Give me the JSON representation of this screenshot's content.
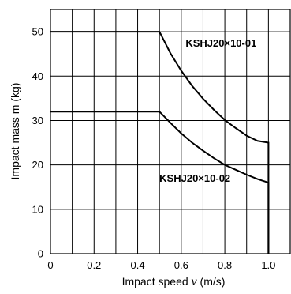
{
  "chart_data": {
    "type": "line",
    "xlabel_prefix": "Impact speed ",
    "xlabel_symbol": "ν",
    "xlabel_suffix": " (m/s)",
    "ylabel": "Impact mass m (kg)",
    "xlim": [
      0,
      1.1
    ],
    "ylim": [
      0,
      55
    ],
    "x_ticks": [
      0,
      0.2,
      0.4,
      0.6,
      0.8,
      1.0
    ],
    "x_tick_labels": [
      "0",
      "0.2",
      "0.4",
      "0.6",
      "0.8",
      "1.0"
    ],
    "x_grid": [
      0,
      0.1,
      0.2,
      0.3,
      0.4,
      0.5,
      0.6,
      0.7,
      0.8,
      0.9,
      1.0,
      1.1
    ],
    "y_ticks": [
      0,
      10,
      20,
      30,
      40,
      50
    ],
    "y_tick_labels": [
      "0",
      "10",
      "20",
      "30",
      "40",
      "50"
    ],
    "grid": true,
    "series": [
      {
        "name": "KSHJ20×10-01",
        "x": [
          0,
          0.5,
          0.55,
          0.6,
          0.65,
          0.7,
          0.75,
          0.8,
          0.85,
          0.9,
          0.95,
          1.0,
          1.0
        ],
        "y": [
          50,
          50,
          45.2,
          41.2,
          37.8,
          34.9,
          32.4,
          30.1,
          28.3,
          26.6,
          25.4,
          25,
          0
        ]
      },
      {
        "name": "KSHJ20×10-02",
        "x": [
          0,
          0.5,
          0.55,
          0.6,
          0.65,
          0.7,
          0.75,
          0.8,
          0.85,
          0.9,
          0.95,
          1.0,
          1.0
        ],
        "y": [
          32,
          32,
          29.5,
          27.1,
          25,
          23.2,
          21.5,
          20,
          18.9,
          17.8,
          16.8,
          16,
          0
        ]
      }
    ]
  }
}
